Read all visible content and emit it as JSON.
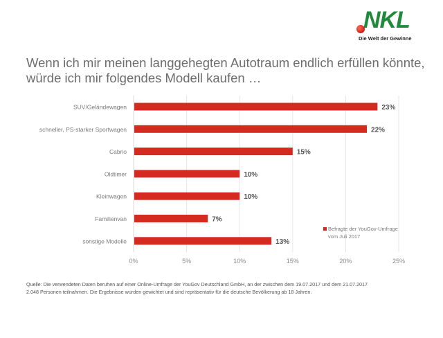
{
  "logo": {
    "brand": "NKL",
    "tagline": "Die Welt der Gewinne",
    "colors": {
      "green": "#1f8a3a",
      "red": "#d42a1f"
    }
  },
  "title_lines": [
    "Wenn ich mir meinen langgehegten Autotraum endlich erfüllen könnte,",
    "würde ich mir folgendes Modell kaufen …"
  ],
  "chart_data": {
    "type": "bar",
    "orientation": "horizontal",
    "title": "Wenn ich mir meinen langgehegten Autotraum endlich erfüllen könnte, würde ich mir folgendes Modell kaufen …",
    "categories": [
      "SUV/Geländewagen",
      "schneller, PS-starker Sportwagen",
      "Cabrio",
      "Oldtimer",
      "Kleinwagen",
      "Familienvan",
      "sonstige Modelle"
    ],
    "series": [
      {
        "name": "Befragte der YouGov-Umfrage vom Juli 2017",
        "values": [
          23,
          22,
          15,
          10,
          10,
          7,
          13
        ],
        "color": "#d42a1f"
      }
    ],
    "data_labels": [
      "23%",
      "22%",
      "15%",
      "10%",
      "10%",
      "7%",
      "13%"
    ],
    "xlabel": "",
    "ylabel": "",
    "xlim": [
      0,
      25
    ],
    "xticks": [
      0,
      5,
      10,
      15,
      20,
      25
    ],
    "xtick_labels": [
      "0%",
      "5%",
      "10%",
      "15%",
      "20%",
      "25%"
    ],
    "grid": true,
    "legend": {
      "position": "bottom-right",
      "lines": [
        "Befragte der YouGov-Umfrage",
        "vom Juli 2017"
      ]
    }
  },
  "footnote_lines": [
    "Quelle: Die verwendeten Daten beruhen auf einer Online-Umfrage der YouGov Deutschland GmbH, an der zwischen dem 19.07.2017 und dem 21.07.2017",
    "2.048 Personen teilnahmen. Die Ergebnisse wurden gewichtet und sind repräsentativ für die deutsche Bevölkerung ab 18 Jahren."
  ]
}
